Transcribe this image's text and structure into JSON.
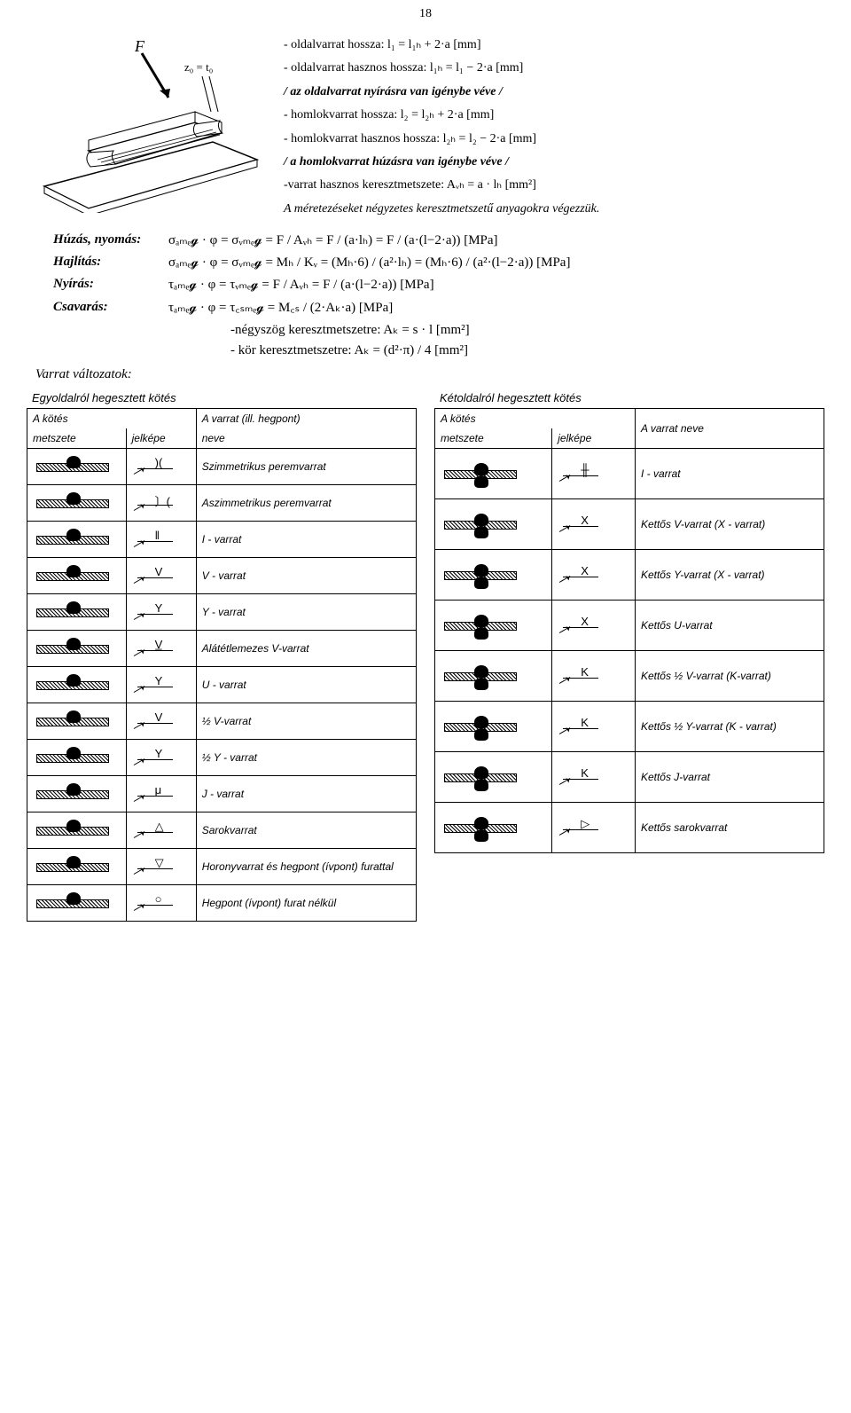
{
  "page_number": "18",
  "equations": {
    "l1": "- oldalvarrat hossza:  l₁ = l₁ₕ + 2·a  [mm]",
    "l1h": "- oldalvarrat hasznos hossza:  l₁ₕ = l₁ − 2·a  [mm]",
    "note1": "/ az oldalvarrat nyírásra van igénybe véve /",
    "l2": "- homlokvarrat hossza:  l₂ = l₂ₕ + 2·a  [mm]",
    "l2h": "- homlokvarrat hasznos hossza:  l₂ₕ = l₂ − 2·a  [mm]",
    "note2": "/ a homlokvarrat húzásra van igénybe véve /",
    "avh": "-varrat hasznos keresztmetszete:  Aᵥₕ = a · lₕ  [mm²]",
    "note3": "A méretezéseket négyzetes keresztmetszetű anyagokra végezzük."
  },
  "loads": {
    "huzas_label": "Húzás, nyomás:",
    "huzas_formula": "σₐₘₑ𝓰 · φ = σᵥₘₑ𝓰 = F / Aᵥₕ = F / (a·lₕ) = F / (a·(l−2·a))  [MPa]",
    "hajlitas_label": "Hajlítás:",
    "hajlitas_formula": "σₐₘₑ𝓰 · φ = σᵥₘₑ𝓰 = Mₕ / Kᵥ = (Mₕ·6) / (a²·lₕ) = (Mₕ·6) / (a²·(l−2·a))  [MPa]",
    "nyiras_label": "Nyírás:",
    "nyiras_formula": "τₐₘₑ𝓰 · φ = τᵥₘₑ𝓰 = F / Aᵥₕ = F / (a·(l−2·a))  [MPa]",
    "csavaras_label": "Csavarás:",
    "csavaras_formula": "τₐₘₑ𝓰 · φ = τ꜀ₛₘₑ𝓰 = M꜀ₛ / (2·Aₖ·a)  [MPa]",
    "rect_note": "-négyszög keresztmetszetre:   Aₖ = s · l  [mm²]",
    "circ_note": "- kör keresztmetszetre:   Aₖ = (d²·π) / 4  [mm²]"
  },
  "varrat_heading": "Varrat változatok:",
  "table_left": {
    "title": "Egyoldalról hegesztett kötés",
    "col_group_a": "A kötés",
    "col_group_b": "A varrat (ill. hegpont)",
    "col1": "metszete",
    "col2": "jelképe",
    "col3": "neve",
    "rows": [
      {
        "sym": ")(",
        "name": "Szimmetrikus peremvarrat"
      },
      {
        "sym": "〕(",
        "name": "Aszimmetrikus peremvarrat"
      },
      {
        "sym": "‖",
        "name": "I - varrat"
      },
      {
        "sym": "V",
        "name": "V - varrat"
      },
      {
        "sym": "Y",
        "name": "Y - varrat"
      },
      {
        "sym": "V̲",
        "name": "Alátétlemezes V-varrat"
      },
      {
        "sym": "Y",
        "name": "U - varrat"
      },
      {
        "sym": "V",
        "name": "½ V-varrat"
      },
      {
        "sym": "Y",
        "name": "½ Y - varrat"
      },
      {
        "sym": "μ",
        "name": "J - varrat"
      },
      {
        "sym": "△",
        "name": "Sarokvarrat"
      },
      {
        "sym": "▽",
        "name": "Horonyvarrat és hegpont (ívpont) furattal"
      },
      {
        "sym": "○",
        "name": "Hegpont (ívpont) furat nélkül"
      }
    ]
  },
  "table_right": {
    "title": "Kétoldalról hegesztett kötés",
    "col_group_a": "A kötés",
    "col_group_b": "A varrat neve",
    "col1": "metszete",
    "col2": "jelképe",
    "rows": [
      {
        "sym": "╫",
        "name": "I - varrat"
      },
      {
        "sym": "X",
        "name": "Kettős V-varrat (X - varrat)"
      },
      {
        "sym": "X",
        "name": "Kettős Y-varrat (X - varrat)"
      },
      {
        "sym": "X",
        "name": "Kettős  U-varrat"
      },
      {
        "sym": "K",
        "name": "Kettős ½ V-varrat (K-varrat)"
      },
      {
        "sym": "K",
        "name": "Kettős ½ Y-varrat (K - varrat)"
      },
      {
        "sym": "K",
        "name": "Kettős  J-varrat"
      },
      {
        "sym": "▷",
        "name": "Kettős sarokvarrat"
      }
    ]
  },
  "colors": {
    "text": "#000000",
    "bg": "#ffffff",
    "hatch": "#000000"
  }
}
